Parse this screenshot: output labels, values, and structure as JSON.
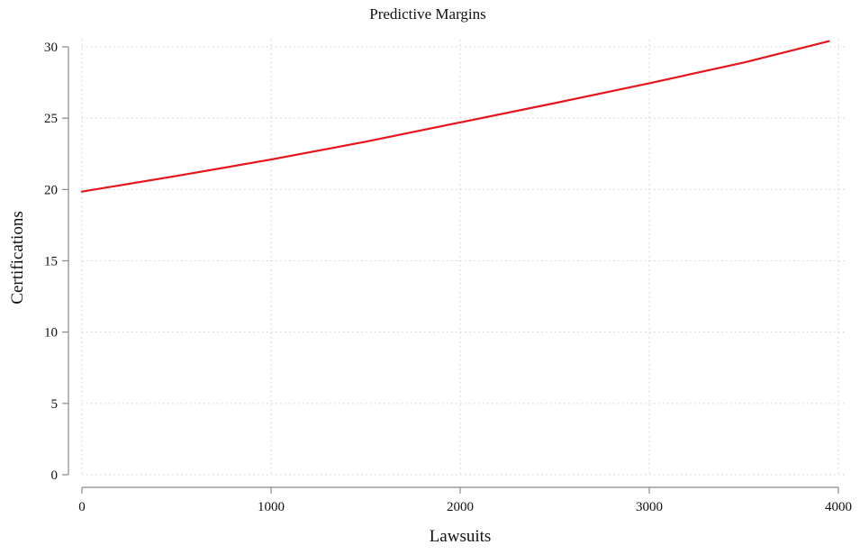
{
  "chart_data": {
    "type": "line",
    "title": "Predictive Margins",
    "xlabel": "Lawsuits",
    "ylabel": "Certifications",
    "xlim": [
      0,
      4000
    ],
    "ylim": [
      0,
      30
    ],
    "x_ticks": [
      0,
      1000,
      2000,
      3000,
      4000
    ],
    "y_ticks": [
      0,
      5,
      10,
      15,
      20,
      25,
      30
    ],
    "x_tick_labels": [
      "0",
      "1000",
      "2000",
      "3000",
      "4000"
    ],
    "y_tick_labels": [
      "0",
      "5",
      "10",
      "15",
      "20",
      "25",
      "30"
    ],
    "grid": true,
    "grid_style": "dotted",
    "legend": "none",
    "series": [
      {
        "color": "#e8141c",
        "x": [
          0,
          500,
          1000,
          1500,
          2000,
          2500,
          3000,
          3500,
          3950
        ],
        "y": [
          19.85,
          20.95,
          22.1,
          23.35,
          24.7,
          26.05,
          27.45,
          28.9,
          30.4
        ]
      }
    ]
  }
}
